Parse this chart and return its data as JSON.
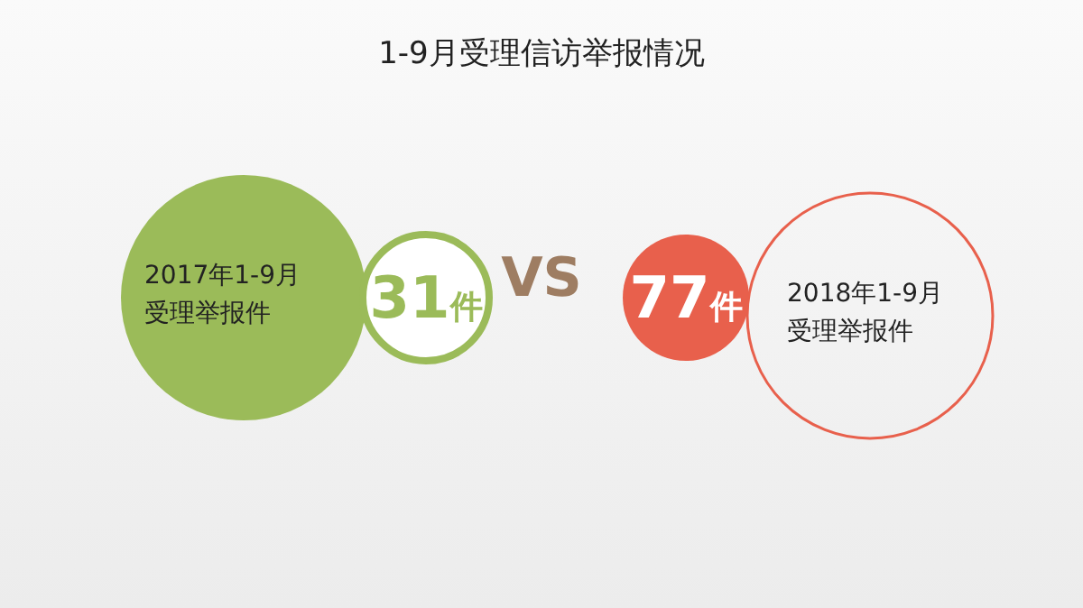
{
  "chart_data": {
    "type": "other",
    "title": "1-9月受理信访举报情况",
    "categories": [
      "2017年1-9月受理举报件",
      "2018年1-9月受理举报件"
    ],
    "values": [
      31,
      77
    ],
    "value_labels": [
      "31件",
      "77件"
    ],
    "colors": [
      "#9bbb59",
      "#e8604c"
    ],
    "annotations": [
      "VS"
    ]
  }
}
